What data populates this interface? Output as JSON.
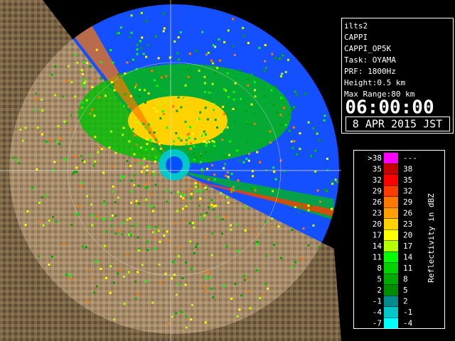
{
  "info": {
    "lines": [
      "ilts2",
      "CAPPI",
      "CAPPI_OP5K",
      "Task: OYAMA",
      "PRF: 1800Hz",
      "Height:0.5 km",
      "Max Range:80 km"
    ],
    "time": "06:00:00",
    "date": "8 APR 2015 JST"
  },
  "legend": {
    "title": "Reflectivity in dBZ",
    "rows": [
      {
        "from": ">38",
        "to": "---",
        "color": "#ff00ff"
      },
      {
        "from": "35",
        "to": "38",
        "color": "#c80000"
      },
      {
        "from": "32",
        "to": "35",
        "color": "#ff0000"
      },
      {
        "from": "29",
        "to": "32",
        "color": "#ff3c00"
      },
      {
        "from": "26",
        "to": "29",
        "color": "#ff7800"
      },
      {
        "from": "23",
        "to": "26",
        "color": "#ffa000"
      },
      {
        "from": "20",
        "to": "23",
        "color": "#ffd200"
      },
      {
        "from": "17",
        "to": "20",
        "color": "#ffff00"
      },
      {
        "from": "14",
        "to": "17",
        "color": "#b4ff00"
      },
      {
        "from": "11",
        "to": "14",
        "color": "#00ff00"
      },
      {
        "from": "8",
        "to": "11",
        "color": "#00d200"
      },
      {
        "from": "5",
        "to": "8",
        "color": "#00aa00"
      },
      {
        "from": "2",
        "to": "5",
        "color": "#008c00"
      },
      {
        "from": "-1",
        "to": "2",
        "color": "#008c8c"
      },
      {
        "from": "-4",
        "to": "-1",
        "color": "#00c8c8"
      },
      {
        "from": "-7",
        "to": "-4",
        "color": "#00ffff"
      }
    ]
  }
}
